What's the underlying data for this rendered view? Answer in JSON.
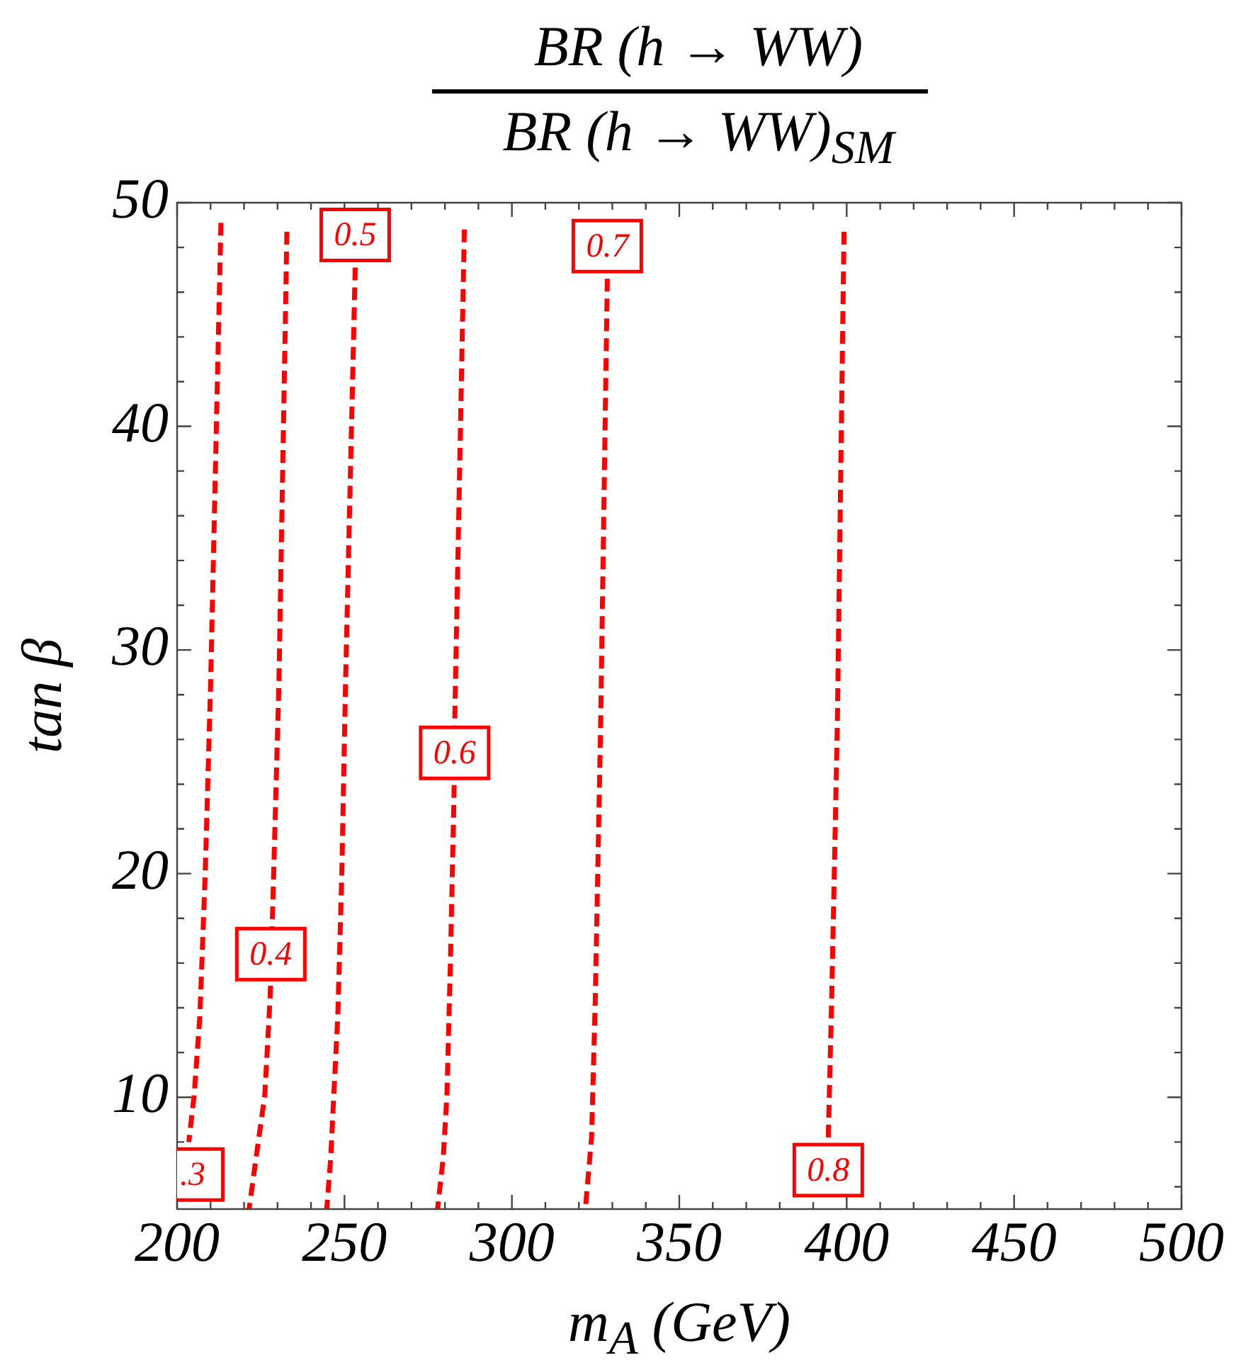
{
  "chart_data": {
    "type": "line",
    "title": "BR (h → WW)",
    "subtitle": "BR (h → WW)$_{SM}$",
    "xlabel": "m$_{A}$ (GeV)",
    "ylabel": "tan β",
    "xlim": [
      200,
      500
    ],
    "ylim": [
      5,
      50
    ],
    "xticks": [
      200,
      {
        "value": 210,
        "label": null
      },
      {
        "value": 220,
        "label": null
      },
      {
        "value": 230,
        "label": null
      },
      {
        "value": 240,
        "label": null
      },
      250,
      {
        "value": 260,
        "label": null
      },
      {
        "value": 270,
        "label": null
      },
      {
        "value": 280,
        "label": null
      },
      {
        "value": 290,
        "label": null
      },
      300,
      {
        "value": 310,
        "label": null
      },
      {
        "value": 320,
        "label": null
      },
      {
        "value": 330,
        "label": null
      },
      {
        "value": 340,
        "label": null
      },
      350,
      {
        "value": 360,
        "label": null
      },
      {
        "value": 370,
        "label": null
      },
      {
        "value": 380,
        "label": null
      },
      {
        "value": 390,
        "label": null
      },
      400,
      {
        "value": 410,
        "label": null
      },
      {
        "value": 420,
        "label": null
      },
      {
        "value": 430,
        "label": null
      },
      {
        "value": 440,
        "label": null
      },
      450,
      {
        "value": 460,
        "label": null
      },
      {
        "value": 470,
        "label": null
      },
      {
        "value": 480,
        "label": null
      },
      {
        "value": 490,
        "label": null
      },
      500
    ],
    "yticks": [
      {
        "value": 6,
        "label": null
      },
      {
        "value": 8,
        "label": null
      },
      10,
      {
        "value": 12,
        "label": null
      },
      {
        "value": 14,
        "label": null
      },
      {
        "value": 16,
        "label": null
      },
      {
        "value": 18,
        "label": null
      },
      20,
      {
        "value": 22,
        "label": null
      },
      {
        "value": 24,
        "label": null
      },
      {
        "value": 26,
        "label": null
      },
      {
        "value": 28,
        "label": null
      },
      30,
      {
        "value": 32,
        "label": null
      },
      {
        "value": 34,
        "label": null
      },
      {
        "value": 36,
        "label": null
      },
      {
        "value": 38,
        "label": null
      },
      40,
      {
        "value": 42,
        "label": null
      },
      {
        "value": 44,
        "label": null
      },
      {
        "value": 46,
        "label": null
      },
      {
        "value": 48,
        "label": null
      },
      50
    ],
    "grid": false,
    "legend": false,
    "marker": "none",
    "line_style": "dashed",
    "series": [
      {
        "color": "#ff0000",
        "x": [
          213.1,
          210,
          208.4,
          206.8,
          205.1,
          203.5
        ],
        "values": [
          49.1,
          28.4,
          20,
          13.6,
          10.1,
          8
        ]
      },
      {
        "color": "#ff0000",
        "x": [
          232.8,
          230.4,
          228.6,
          227.8,
          226.2,
          223.6,
          221.5
        ],
        "values": [
          48.7,
          28.4,
          18.7,
          14.5,
          10.1,
          7.3,
          5
        ]
      },
      {
        "color": "#ff0000",
        "x": [
          253.2,
          250.3,
          249.2,
          248,
          246.8,
          245.9,
          244.7
        ],
        "values": [
          47.1,
          28.4,
          20,
          13.6,
          10.1,
          7.3,
          5
        ]
      },
      {
        "color": "#ff0000",
        "x": [
          285.8,
          283,
          282.7,
          281.6,
          280.6,
          279.5,
          277.8
        ],
        "values": [
          48.8,
          27.4,
          23.4,
          15.8,
          10.1,
          7.3,
          5
        ]
      },
      {
        "color": "#ff0000",
        "x": [
          328.5,
          326.5,
          324.9,
          323.8,
          322
        ],
        "values": [
          46.6,
          26.6,
          14.3,
          8.2,
          5.1
        ]
      },
      {
        "color": "#ff0000",
        "x": [
          399.2,
          397.2,
          395.5,
          394.5
        ],
        "values": [
          48.7,
          26.6,
          14.3,
          8.2
        ]
      }
    ],
    "annotations": [
      {
        "text": ".3",
        "x": 203.5,
        "y": 8
      },
      {
        "text": "0.4",
        "x": 228,
        "y": 16.4
      },
      {
        "text": "0.5",
        "x": 253.2,
        "y": 47.1
      },
      {
        "text": "0.6",
        "x": 282.9,
        "y": 25.4
      },
      {
        "text": "0.7",
        "x": 328.5,
        "y": 46.6
      },
      {
        "text": "0.8",
        "x": 394.5,
        "y": 8.2
      }
    ]
  }
}
